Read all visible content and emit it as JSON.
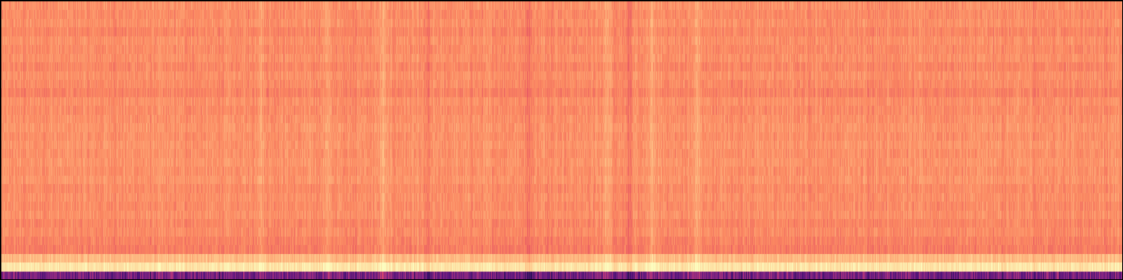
{
  "chart_data": {
    "type": "heatmap",
    "title": "",
    "xlabel": "",
    "ylabel": "",
    "colormap": "magma",
    "value_range": [
      0,
      1
    ],
    "axes_visible": false,
    "grid": false,
    "legend": "none",
    "n_time_frames": 1598,
    "n_bands": 32,
    "bands_top_to_bottom": [
      {
        "band": 1,
        "mean": 0.77
      },
      {
        "band": 2,
        "mean": 0.76
      },
      {
        "band": 3,
        "mean": 0.77
      },
      {
        "band": 4,
        "mean": 0.75
      },
      {
        "band": 5,
        "mean": 0.77
      },
      {
        "band": 6,
        "mean": 0.76
      },
      {
        "band": 7,
        "mean": 0.77
      },
      {
        "band": 8,
        "mean": 0.75
      },
      {
        "band": 9,
        "mean": 0.77
      },
      {
        "band": 10,
        "mean": 0.76
      },
      {
        "band": 11,
        "mean": 0.74
      },
      {
        "band": 12,
        "mean": 0.77
      },
      {
        "band": 13,
        "mean": 0.76
      },
      {
        "band": 14,
        "mean": 0.77
      },
      {
        "band": 15,
        "mean": 0.78
      },
      {
        "band": 16,
        "mean": 0.77
      },
      {
        "band": 17,
        "mean": 0.78
      },
      {
        "band": 18,
        "mean": 0.77
      },
      {
        "band": 19,
        "mean": 0.78
      },
      {
        "band": 20,
        "mean": 0.77
      },
      {
        "band": 21,
        "mean": 0.78
      },
      {
        "band": 22,
        "mean": 0.76
      },
      {
        "band": 23,
        "mean": 0.77
      },
      {
        "band": 24,
        "mean": 0.76
      },
      {
        "band": 25,
        "mean": 0.77
      },
      {
        "band": 26,
        "mean": 0.75
      },
      {
        "band": 27,
        "mean": 0.76
      },
      {
        "band": 28,
        "mean": 0.74
      },
      {
        "band": 29,
        "mean": 0.73
      },
      {
        "band": 30,
        "mean": 0.86
      },
      {
        "band": 31,
        "mean": 0.95
      },
      {
        "band": 32,
        "mean": 0.35
      }
    ],
    "column_features": [
      {
        "t_frac": 0.23,
        "delta": 0.06
      },
      {
        "t_frac": 0.29,
        "delta": 0.05
      },
      {
        "t_frac": 0.34,
        "delta": 0.07
      },
      {
        "t_frac": 0.38,
        "delta": -0.05
      },
      {
        "t_frac": 0.47,
        "delta": -0.05
      },
      {
        "t_frac": 0.54,
        "delta": 0.07
      },
      {
        "t_frac": 0.56,
        "delta": -0.06
      },
      {
        "t_frac": 0.58,
        "delta": 0.06
      },
      {
        "t_frac": 0.62,
        "delta": 0.06
      }
    ]
  }
}
